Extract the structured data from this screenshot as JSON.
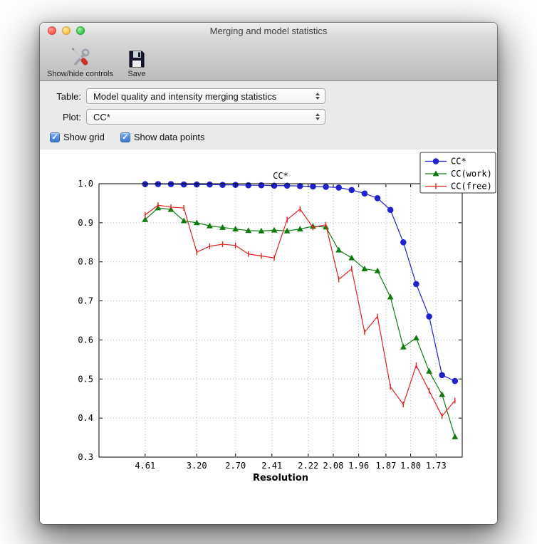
{
  "window": {
    "title": "Merging and model statistics"
  },
  "toolbar": {
    "items": [
      {
        "label": "Show/hide controls",
        "icon": "tools-icon"
      },
      {
        "label": "Save",
        "icon": "floppy-disk-icon"
      }
    ]
  },
  "controls": {
    "table_label": "Table:",
    "table_value": "Model quality and intensity merging statistics",
    "plot_label": "Plot:",
    "plot_value": "CC*",
    "show_grid_label": "Show grid",
    "show_data_points_label": "Show data points",
    "show_grid_checked": true,
    "show_data_points_checked": true
  },
  "icons": {
    "checkmark": "✓"
  },
  "chart_data": {
    "type": "line",
    "title": "CC*",
    "xlabel": "Resolution",
    "ylabel": "",
    "ylim": [
      0.3,
      1.0
    ],
    "yticks": [
      0.3,
      0.4,
      0.5,
      0.6,
      0.7,
      0.8,
      0.9,
      1.0
    ],
    "grid": true,
    "legend_position": "top-right",
    "x_start_frac": 0.127,
    "x_end_frac": 0.98,
    "xticks": [
      {
        "label": "4.61",
        "f": 0.127
      },
      {
        "label": "3.20",
        "f": 0.269
      },
      {
        "label": "2.70",
        "f": 0.376
      },
      {
        "label": "2.41",
        "f": 0.476
      },
      {
        "label": "2.22",
        "f": 0.576
      },
      {
        "label": "2.08",
        "f": 0.645
      },
      {
        "label": "1.96",
        "f": 0.715
      },
      {
        "label": "1.87",
        "f": 0.79
      },
      {
        "label": "1.80",
        "f": 0.858
      },
      {
        "label": "1.73",
        "f": 0.928
      }
    ],
    "series": [
      {
        "name": "CC*",
        "color": "#2222cc",
        "marker": "circle",
        "values": [
          0.999,
          0.999,
          0.999,
          0.998,
          0.998,
          0.998,
          0.997,
          0.997,
          0.996,
          0.996,
          0.995,
          0.995,
          0.994,
          0.993,
          0.992,
          0.99,
          0.984,
          0.975,
          0.963,
          0.933,
          0.85,
          0.743,
          0.66,
          0.51,
          0.495
        ]
      },
      {
        "name": "CC(work)",
        "color": "#107c10",
        "marker": "triangle",
        "values": [
          0.908,
          0.938,
          0.934,
          0.905,
          0.9,
          0.892,
          0.888,
          0.884,
          0.88,
          0.879,
          0.881,
          0.879,
          0.884,
          0.891,
          0.889,
          0.83,
          0.81,
          0.782,
          0.777,
          0.71,
          0.582,
          0.605,
          0.52,
          0.46,
          0.352
        ]
      },
      {
        "name": "CC(free)",
        "color": "#dd2222",
        "marker": "vtick",
        "values": [
          0.92,
          0.945,
          0.94,
          0.938,
          0.825,
          0.84,
          0.845,
          0.842,
          0.82,
          0.815,
          0.81,
          0.908,
          0.935,
          0.888,
          0.895,
          0.755,
          0.782,
          0.62,
          0.66,
          0.48,
          0.435,
          0.535,
          0.47,
          0.405,
          0.445
        ]
      }
    ]
  }
}
